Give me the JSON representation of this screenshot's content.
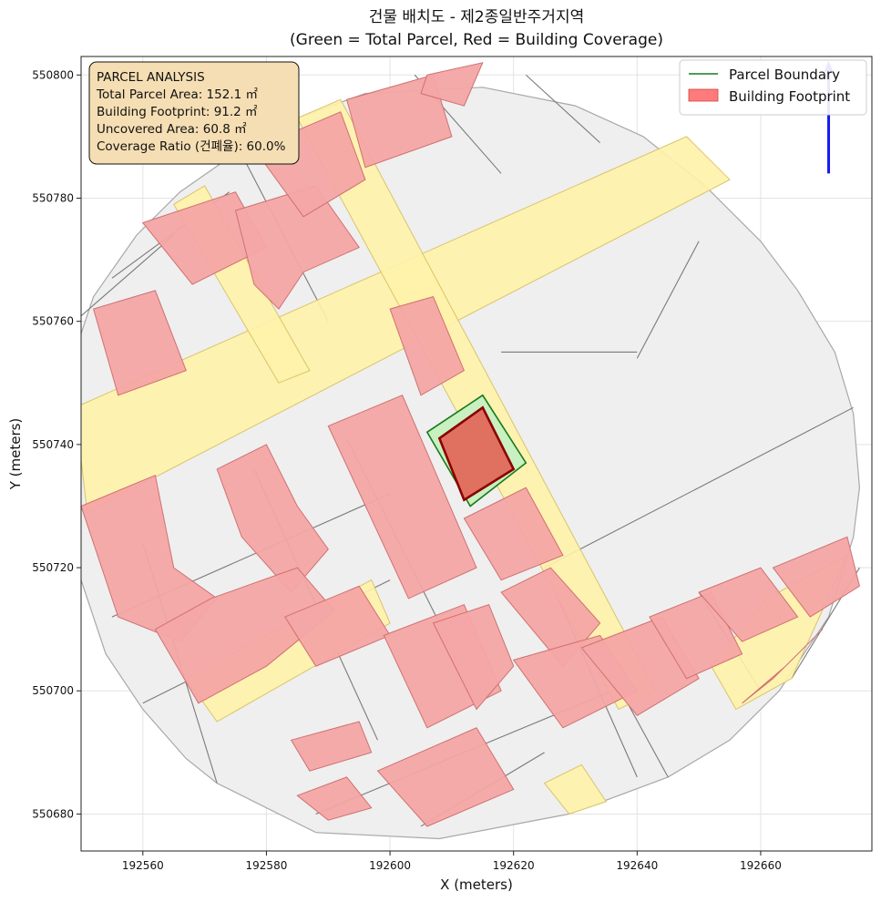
{
  "chart_data": {
    "type": "map",
    "title": "건물 배치도 - 제2종일반주거지역",
    "subtitle": "(Green = Total Parcel, Red = Building Coverage)",
    "xlabel": "X (meters)",
    "ylabel": "Y (meters)",
    "xlim": [
      192550,
      192678
    ],
    "ylim": [
      550674,
      550803
    ],
    "x_ticks": [
      "192560",
      "192580",
      "192600",
      "192620",
      "192640",
      "192660"
    ],
    "y_ticks": [
      "550680",
      "550700",
      "550720",
      "550740",
      "550760",
      "550780",
      "550800"
    ],
    "grid": true,
    "legend": {
      "position": "top-right",
      "entries": [
        {
          "label": "Parcel Boundary",
          "kind": "line",
          "color": "#1a7a1a"
        },
        {
          "label": "Building Footprint",
          "kind": "patch",
          "color": "#ff7b7b"
        }
      ]
    },
    "info_box": {
      "position": "top-left",
      "lines": [
        "PARCEL ANALYSIS",
        "Total Parcel Area: 152.1 ㎡",
        "Building Footprint: 91.2 ㎡",
        "Uncovered Area: 60.8 ㎡",
        "Coverage Ratio (건폐율): 60.0%"
      ]
    },
    "summary": {
      "total_parcel_area_m2": 152.1,
      "building_footprint_m2": 91.2,
      "uncovered_area_m2": 60.8,
      "coverage_ratio_pct": 60.0
    },
    "target_parcel": [
      [
        192606,
        550742
      ],
      [
        192615,
        550748
      ],
      [
        192622,
        550737
      ],
      [
        192613,
        550730
      ]
    ],
    "target_building": [
      [
        192608,
        550741
      ],
      [
        192615,
        550746
      ],
      [
        192620,
        550736
      ],
      [
        192612,
        550731
      ]
    ],
    "north_arrow": {
      "x": 192671,
      "y0": 550784,
      "y1": 550802
    },
    "study_area": [
      [
        192596,
        550797
      ],
      [
        192615,
        550798
      ],
      [
        192630,
        550795
      ],
      [
        192641,
        550790
      ],
      [
        192651,
        550782
      ],
      [
        192660,
        550773
      ],
      [
        192666,
        550765
      ],
      [
        192672,
        550755
      ],
      [
        192675,
        550745
      ],
      [
        192676,
        550733
      ],
      [
        192675,
        550725
      ],
      [
        192671,
        550712
      ],
      [
        192663,
        550700
      ],
      [
        192655,
        550692
      ],
      [
        192645,
        550686
      ],
      [
        192629,
        550680
      ],
      [
        192608,
        550676
      ],
      [
        192588,
        550677
      ],
      [
        192572,
        550685
      ],
      [
        192567,
        550689
      ],
      [
        192560,
        550697
      ],
      [
        192554,
        550706
      ],
      [
        192550,
        550718
      ],
      [
        192549,
        550730
      ],
      [
        192548,
        550746
      ],
      [
        192549,
        550755
      ],
      [
        192552,
        550764
      ],
      [
        192559,
        550774
      ],
      [
        192566,
        550781
      ],
      [
        192576,
        550788
      ],
      [
        192585,
        550793
      ]
    ],
    "roads": [
      [
        [
          192549,
          550746
        ],
        [
          192648,
          550790
        ],
        [
          192655,
          550783
        ],
        [
          192551,
          550729
        ]
      ],
      [
        [
          192585,
          550793
        ],
        [
          192592,
          550796
        ],
        [
          192643,
          550700
        ],
        [
          192637,
          550697
        ]
      ],
      [
        [
          192565,
          550779
        ],
        [
          192570,
          550782
        ],
        [
          192587,
          550752
        ],
        [
          192582,
          550750
        ]
      ],
      [
        [
          192567,
          550702
        ],
        [
          192597,
          550718
        ],
        [
          192600,
          550711
        ],
        [
          192572,
          550695
        ]
      ],
      [
        [
          192652,
          550704
        ],
        [
          192661,
          550715
        ],
        [
          192674,
          550722
        ],
        [
          192665,
          550702
        ],
        [
          192656,
          550697
        ]
      ],
      [
        [
          192625,
          550685
        ],
        [
          192629,
          550680
        ],
        [
          192635,
          550682
        ],
        [
          192631,
          550688
        ]
      ]
    ],
    "parcel_lines": [
      [
        [
          192549,
          550760
        ],
        [
          192565,
          550774
        ]
      ],
      [
        [
          192555,
          550767
        ],
        [
          192574,
          550781
        ]
      ],
      [
        [
          192575,
          550789
        ],
        [
          192590,
          550760
        ]
      ],
      [
        [
          192604,
          550800
        ],
        [
          192618,
          550784
        ]
      ],
      [
        [
          192622,
          550800
        ],
        [
          192634,
          550789
        ]
      ],
      [
        [
          192560,
          550724
        ],
        [
          192572,
          550685
        ]
      ],
      [
        [
          192555,
          550712
        ],
        [
          192600,
          550732
        ]
      ],
      [
        [
          192578,
          550736
        ],
        [
          192598,
          550692
        ]
      ],
      [
        [
          192593,
          550741
        ],
        [
          192612,
          550703
        ]
      ],
      [
        [
          192560,
          550698
        ],
        [
          192600,
          550718
        ]
      ],
      [
        [
          192588,
          550680
        ],
        [
          192636,
          550700
        ]
      ],
      [
        [
          192605,
          550678
        ],
        [
          192625,
          550690
        ]
      ],
      [
        [
          192625,
          550720
        ],
        [
          192675,
          550746
        ]
      ],
      [
        [
          192625,
          550720
        ],
        [
          192640,
          550686
        ]
      ],
      [
        [
          192633,
          550708
        ],
        [
          192645,
          550686
        ]
      ],
      [
        [
          192650,
          550716
        ],
        [
          192660,
          550700
        ]
      ],
      [
        [
          192665,
          550702
        ],
        [
          192676,
          550720
        ]
      ],
      [
        [
          192640,
          550754
        ],
        [
          192650,
          550773
        ]
      ],
      [
        [
          192618,
          550755
        ],
        [
          192640,
          550755
        ]
      ]
    ],
    "buildings": [
      [
        [
          192552,
          550762
        ],
        [
          192562,
          550765
        ],
        [
          192567,
          550752
        ],
        [
          192556,
          550748
        ]
      ],
      [
        [
          192560,
          550776
        ],
        [
          192575,
          550781
        ],
        [
          192580,
          550772
        ],
        [
          192568,
          550766
        ]
      ],
      [
        [
          192575,
          550778
        ],
        [
          192588,
          550782
        ],
        [
          192595,
          550772
        ],
        [
          192586,
          550768
        ],
        [
          192582,
          550762
        ],
        [
          192578,
          550766
        ]
      ],
      [
        [
          192578,
          550788
        ],
        [
          192592,
          550794
        ],
        [
          192596,
          550783
        ],
        [
          192586,
          550777
        ]
      ],
      [
        [
          192593,
          550796
        ],
        [
          192607,
          550800
        ],
        [
          192610,
          550790
        ],
        [
          192596,
          550785
        ]
      ],
      [
        [
          192606,
          550800
        ],
        [
          192615,
          550802
        ],
        [
          192612,
          550795
        ],
        [
          192605,
          550797
        ]
      ],
      [
        [
          192550,
          550730
        ],
        [
          192562,
          550735
        ],
        [
          192565,
          550720
        ],
        [
          192572,
          550715
        ],
        [
          192566,
          550708
        ],
        [
          192556,
          550712
        ]
      ],
      [
        [
          192572,
          550736
        ],
        [
          192580,
          550740
        ],
        [
          192585,
          550730
        ],
        [
          192590,
          550723
        ],
        [
          192584,
          550716
        ],
        [
          192576,
          550725
        ]
      ],
      [
        [
          192562,
          550710
        ],
        [
          192571,
          550715
        ],
        [
          192585,
          550720
        ],
        [
          192591,
          550713
        ],
        [
          192580,
          550704
        ],
        [
          192569,
          550698
        ]
      ],
      [
        [
          192583,
          550712
        ],
        [
          192595,
          550717
        ],
        [
          192600,
          550709
        ],
        [
          192588,
          550704
        ]
      ],
      [
        [
          192590,
          550743
        ],
        [
          192602,
          550748
        ],
        [
          192614,
          550720
        ],
        [
          192603,
          550715
        ]
      ],
      [
        [
          192600,
          550762
        ],
        [
          192607,
          550764
        ],
        [
          192612,
          550752
        ],
        [
          192605,
          550748
        ]
      ],
      [
        [
          192599,
          550709
        ],
        [
          192612,
          550714
        ],
        [
          192618,
          550700
        ],
        [
          192606,
          550694
        ]
      ],
      [
        [
          192607,
          550711
        ],
        [
          192616,
          550714
        ],
        [
          192620,
          550704
        ],
        [
          192614,
          550697
        ]
      ],
      [
        [
          192612,
          550728
        ],
        [
          192622,
          550733
        ],
        [
          192628,
          550722
        ],
        [
          192618,
          550718
        ]
      ],
      [
        [
          192618,
          550716
        ],
        [
          192626,
          550720
        ],
        [
          192634,
          550711
        ],
        [
          192628,
          550704
        ]
      ],
      [
        [
          192620,
          550705
        ],
        [
          192634,
          550709
        ],
        [
          192640,
          550700
        ],
        [
          192628,
          550694
        ]
      ],
      [
        [
          192631,
          550707
        ],
        [
          192644,
          550712
        ],
        [
          192650,
          550702
        ],
        [
          192640,
          550696
        ]
      ],
      [
        [
          192642,
          550712
        ],
        [
          192652,
          550716
        ],
        [
          192657,
          550706
        ],
        [
          192648,
          550702
        ]
      ],
      [
        [
          192650,
          550716
        ],
        [
          192660,
          550720
        ],
        [
          192666,
          550712
        ],
        [
          192657,
          550708
        ]
      ],
      [
        [
          192662,
          550720
        ],
        [
          192674,
          550725
        ],
        [
          192676,
          550717
        ],
        [
          192668,
          550712
        ]
      ],
      [
        [
          192657,
          550698
        ],
        [
          192664,
          550704
        ],
        [
          192670,
          550710
        ],
        [
          192662,
          550702
        ]
      ],
      [
        [
          192598,
          550687
        ],
        [
          192614,
          550694
        ],
        [
          192620,
          550684
        ],
        [
          192606,
          550678
        ]
      ],
      [
        [
          192584,
          550692
        ],
        [
          192595,
          550695
        ],
        [
          192597,
          550690
        ],
        [
          192587,
          550687
        ]
      ],
      [
        [
          192585,
          550683
        ],
        [
          192593,
          550686
        ],
        [
          192597,
          550681
        ],
        [
          192590,
          550679
        ]
      ]
    ]
  },
  "colors": {
    "parcel_fill": "#efefef",
    "parcel_line": "#7a7a7a",
    "road_fill": "#fff2aa",
    "road_line": "#d8c46a",
    "building_fill": "#f4a5a5",
    "building_line": "#d07070",
    "target_parcel_fill": "#c8f0c0",
    "target_parcel_line": "#1a7a1a",
    "target_building_fill": "#e07060",
    "target_building_line": "#8b0000",
    "info_box_fill": "#f5deb3",
    "north_arrow": "#1a1aee"
  }
}
